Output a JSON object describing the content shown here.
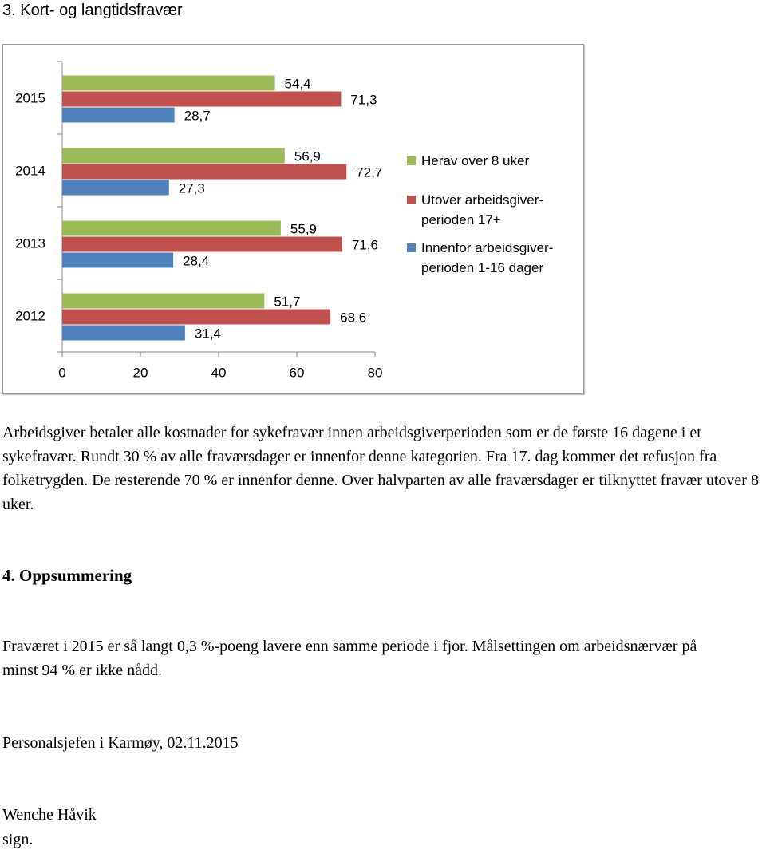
{
  "heading": "3. Kort- og langtidsfravær",
  "chart_data": {
    "type": "bar",
    "orientation": "horizontal",
    "categories": [
      "2012",
      "2013",
      "2014",
      "2015"
    ],
    "series": [
      {
        "name": "Innenfor arbeidsgiver-perioden 1-16 dager",
        "color": "#4f81bd",
        "values": [
          31.4,
          28.4,
          27.3,
          28.7
        ],
        "value_labels": [
          "31,4",
          "28,4",
          "27,3",
          "28,7"
        ]
      },
      {
        "name": "Utover arbeidsgiver-perioden 17+",
        "color": "#c0504d",
        "values": [
          68.6,
          71.6,
          72.7,
          71.3
        ],
        "value_labels": [
          "68,6",
          "71,6",
          "72,7",
          "71,3"
        ]
      },
      {
        "name": "Herav over 8 uker",
        "color": "#9bbb59",
        "values": [
          51.7,
          55.9,
          56.9,
          54.4
        ],
        "value_labels": [
          "51,7",
          "55,9",
          "56,9",
          "54,4"
        ]
      }
    ],
    "xlim": [
      0,
      80
    ],
    "xticks": [
      0,
      20,
      40,
      60,
      80
    ],
    "legend": "right"
  },
  "paragraph": "Arbeidsgiver betaler alle kostnader for sykefravær innen arbeidsgiverperioden som er de første 16 dagene i et sykefravær. Rundt 30 % av alle fraværsdager er innenfor denne kategorien. Fra 17. dag kommer det refusjon fra folketrygden. De resterende 70 % er innenfor denne. Over halvparten av alle fraværsdager er tilknyttet fravær utover 8 uker.",
  "summary_heading": "4. Oppsummering",
  "summary": "Fraværet i 2015 er så langt 0,3 %-poeng lavere enn samme periode i fjor. Målsettingen om arbeidsnærvær på minst 94 % er ikke nådd.",
  "signature": {
    "place_date": "Personalsjefen i Karmøy, 02.11.2015",
    "name": "Wenche Håvik",
    "sign": "sign."
  }
}
